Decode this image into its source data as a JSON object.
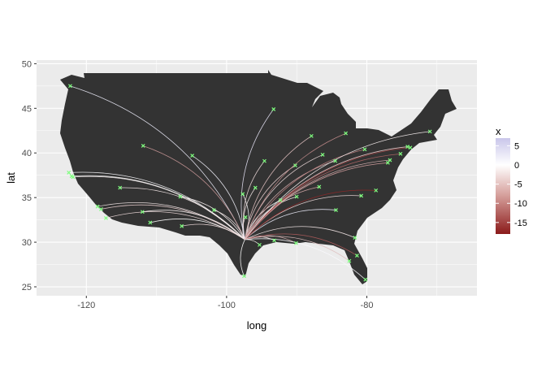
{
  "chart_data": {
    "type": "map",
    "xlabel": "long",
    "ylabel": "lat",
    "xlim": [
      -127.1,
      -64.3
    ],
    "ylim": [
      24,
      50.4
    ],
    "x_ticks": [
      -120,
      -100,
      -80
    ],
    "y_ticks": [
      25,
      30,
      35,
      40,
      45,
      50
    ],
    "x_tick_labels": [
      "-120",
      "-100",
      "-80"
    ],
    "y_tick_labels": [
      "25",
      "30",
      "35",
      "40",
      "45",
      "50"
    ],
    "grid": true,
    "map_region": "contiguous-united-states",
    "colors": {
      "panel_background": "#ebebeb",
      "grid": "#ffffff",
      "land": "#333333",
      "point": "#7fff7f",
      "scale_high": "#cfcdec",
      "scale_mid": "#ffffff",
      "scale_low": "#8b1a1a"
    },
    "hub": [
      -97.4,
      30.3
    ],
    "legend": {
      "title": "x",
      "position": "right",
      "range": [
        -18,
        7
      ],
      "breaks": [
        5,
        0,
        -5,
        -10,
        -15
      ],
      "labels": [
        "5",
        "0",
        "-5",
        "-10",
        "-15"
      ]
    },
    "destinations": [
      {
        "lon": -122.3,
        "lat": 47.5,
        "x": 3
      },
      {
        "lon": -122.5,
        "lat": 37.8,
        "x": 1
      },
      {
        "lon": -122.1,
        "lat": 37.4,
        "x": 0
      },
      {
        "lon": -121.9,
        "lat": 37.3,
        "x": -1
      },
      {
        "lon": -118.4,
        "lat": 34.0,
        "x": -2
      },
      {
        "lon": -117.9,
        "lat": 33.7,
        "x": -4
      },
      {
        "lon": -117.2,
        "lat": 32.7,
        "x": -3
      },
      {
        "lon": -115.2,
        "lat": 36.1,
        "x": -2
      },
      {
        "lon": -112.0,
        "lat": 33.4,
        "x": -1
      },
      {
        "lon": -111.9,
        "lat": 40.8,
        "x": -8
      },
      {
        "lon": -110.9,
        "lat": 32.2,
        "x": 0
      },
      {
        "lon": -106.6,
        "lat": 35.1,
        "x": -1
      },
      {
        "lon": -106.4,
        "lat": 31.8,
        "x": -3
      },
      {
        "lon": -104.9,
        "lat": 39.7,
        "x": 2
      },
      {
        "lon": -101.8,
        "lat": 33.6,
        "x": -2
      },
      {
        "lon": -97.7,
        "lat": 35.4,
        "x": 1
      },
      {
        "lon": -97.5,
        "lat": 26.2,
        "x": 0
      },
      {
        "lon": -97.3,
        "lat": 32.8,
        "x": -1
      },
      {
        "lon": -95.9,
        "lat": 36.1,
        "x": -2
      },
      {
        "lon": -95.3,
        "lat": 29.7,
        "x": -1
      },
      {
        "lon": -94.6,
        "lat": 39.1,
        "x": -3
      },
      {
        "lon": -93.3,
        "lat": 44.9,
        "x": 4
      },
      {
        "lon": -93.2,
        "lat": 30.2,
        "x": -2
      },
      {
        "lon": -92.3,
        "lat": 34.7,
        "x": 0
      },
      {
        "lon": -90.2,
        "lat": 38.6,
        "x": -4
      },
      {
        "lon": -90.1,
        "lat": 29.9,
        "x": -6
      },
      {
        "lon": -90.0,
        "lat": 35.1,
        "x": -2
      },
      {
        "lon": -87.9,
        "lat": 41.9,
        "x": -5
      },
      {
        "lon": -86.8,
        "lat": 36.2,
        "x": -7
      },
      {
        "lon": -86.3,
        "lat": 39.8,
        "x": -3
      },
      {
        "lon": -84.4,
        "lat": 33.6,
        "x": 3
      },
      {
        "lon": -84.5,
        "lat": 39.1,
        "x": -6
      },
      {
        "lon": -83.0,
        "lat": 42.2,
        "x": -9
      },
      {
        "lon": -82.5,
        "lat": 27.9,
        "x": -5
      },
      {
        "lon": -81.7,
        "lat": 30.5,
        "x": -2
      },
      {
        "lon": -81.4,
        "lat": 28.5,
        "x": -13
      },
      {
        "lon": -80.8,
        "lat": 35.2,
        "x": -3
      },
      {
        "lon": -80.2,
        "lat": 25.8,
        "x": 1
      },
      {
        "lon": -80.3,
        "lat": 40.4,
        "x": -10
      },
      {
        "lon": -78.7,
        "lat": 35.8,
        "x": -17
      },
      {
        "lon": -77.0,
        "lat": 38.9,
        "x": -8
      },
      {
        "lon": -76.7,
        "lat": 39.2,
        "x": -6
      },
      {
        "lon": -75.2,
        "lat": 39.9,
        "x": -12
      },
      {
        "lon": -74.2,
        "lat": 40.7,
        "x": -4
      },
      {
        "lon": -73.8,
        "lat": 40.6,
        "x": -15
      },
      {
        "lon": -71.0,
        "lat": 42.4,
        "x": -1
      }
    ]
  }
}
